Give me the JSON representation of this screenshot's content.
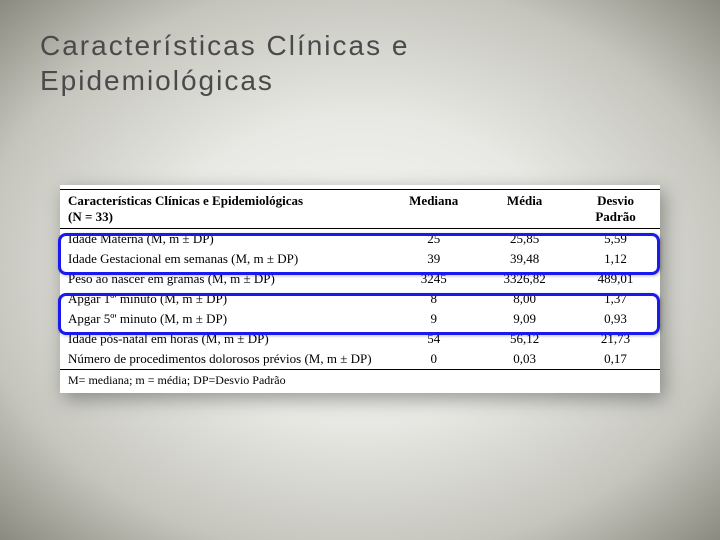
{
  "title_line1": "Características Clínicas e",
  "title_line2": "Epidemiológicas",
  "table": {
    "header_label_line1": "Características Clínicas e Epidemiológicas",
    "header_label_line2": "(N = 33)",
    "columns": [
      "Mediana",
      "Média",
      "Desvio Padrão"
    ],
    "rows": [
      {
        "label": "Idade Materna (M, m ± DP)",
        "mediana": "25",
        "media": "25,85",
        "dp": "5,59"
      },
      {
        "label": "Idade Gestacional em semanas (M, m ± DP)",
        "mediana": "39",
        "media": "39,48",
        "dp": "1,12"
      },
      {
        "label": "Peso ao nascer em gramas (M, m ± DP)",
        "mediana": "3245",
        "media": "3326,82",
        "dp": "489,01"
      },
      {
        "label": "Apgar 1º' minuto (M, m ± DP)",
        "mediana": "8",
        "media": "8,00",
        "dp": "1,37"
      },
      {
        "label": "Apgar 5º' minuto (M, m ± DP)",
        "mediana": "9",
        "media": "9,09",
        "dp": "0,93"
      },
      {
        "label": "Idade pós-natal em horas (M, m ± DP)",
        "mediana": "54",
        "media": "56,12",
        "dp": "21,73"
      },
      {
        "label": "Número de procedimentos dolorosos prévios (M, m ± DP)",
        "mediana": "0",
        "media": "0,03",
        "dp": "0,17"
      }
    ],
    "footnote": "M= mediana; m = média; DP=Desvio Padrão"
  },
  "colors": {
    "highlight": "#1a1af0",
    "text_title": "#4a4a4a",
    "rule": "#000000",
    "paper": "#ffffff"
  }
}
